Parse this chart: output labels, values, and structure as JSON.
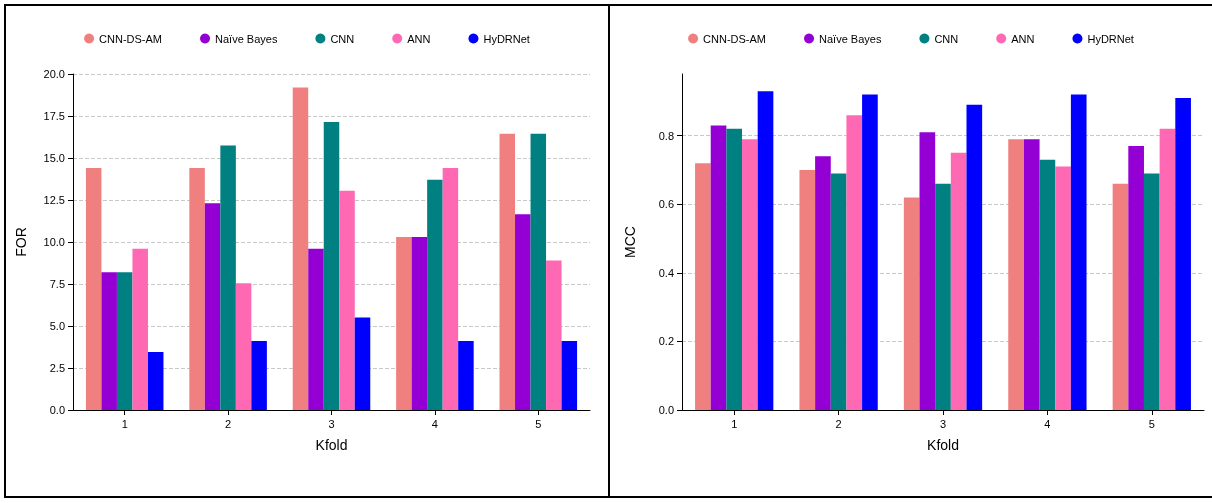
{
  "chart_data": [
    {
      "type": "bar",
      "xlabel": "Kfold",
      "ylabel": "FOR",
      "categories": [
        "1",
        "2",
        "3",
        "4",
        "5"
      ],
      "ylim": [
        0,
        20
      ],
      "yticks": [
        {
          "value": 0,
          "label": "0.0"
        },
        {
          "value": 2.5,
          "label": "2.5"
        },
        {
          "value": 5,
          "label": "5.0"
        },
        {
          "value": 7.5,
          "label": "7.5"
        },
        {
          "value": 10,
          "label": "10.0"
        },
        {
          "value": 12.5,
          "label": "12.5"
        },
        {
          "value": 15,
          "label": "15.0"
        },
        {
          "value": 17.5,
          "label": "17.5"
        },
        {
          "value": 20,
          "label": "20.0"
        }
      ],
      "grid": "y",
      "legend": "top",
      "series": [
        {
          "name": "CNN-DS-AM",
          "color": "#f08080",
          "values": [
            14.4,
            14.4,
            19.2,
            10.3,
            16.45
          ]
        },
        {
          "name": "Naïve Bayes",
          "color": "#9400d3",
          "values": [
            8.2,
            12.3,
            9.6,
            10.3,
            11.65
          ]
        },
        {
          "name": "CNN",
          "color": "#008080",
          "values": [
            8.2,
            15.75,
            17.15,
            13.7,
            16.45
          ]
        },
        {
          "name": "ANN",
          "color": "#ff69b4",
          "values": [
            9.6,
            7.55,
            13.05,
            14.4,
            8.9
          ]
        },
        {
          "name": "HyDRNet",
          "color": "#0000ff",
          "values": [
            3.45,
            4.1,
            5.5,
            4.1,
            4.1
          ]
        }
      ]
    },
    {
      "type": "bar",
      "xlabel": "Kfold",
      "ylabel": "MCC",
      "categories": [
        "1",
        "2",
        "3",
        "4",
        "5"
      ],
      "ylim": [
        0,
        0.98
      ],
      "yticks": [
        {
          "value": 0,
          "label": "0.0"
        },
        {
          "value": 0.2,
          "label": "0.2"
        },
        {
          "value": 0.4,
          "label": "0.4"
        },
        {
          "value": 0.6,
          "label": "0.6"
        },
        {
          "value": 0.8,
          "label": "0.8"
        }
      ],
      "grid": "y",
      "legend": "top",
      "series": [
        {
          "name": "CNN-DS-AM",
          "color": "#f08080",
          "values": [
            0.72,
            0.7,
            0.62,
            0.79,
            0.66
          ]
        },
        {
          "name": "Naïve Bayes",
          "color": "#9400d3",
          "values": [
            0.83,
            0.74,
            0.81,
            0.79,
            0.77
          ]
        },
        {
          "name": "CNN",
          "color": "#008080",
          "values": [
            0.82,
            0.69,
            0.66,
            0.73,
            0.69
          ]
        },
        {
          "name": "ANN",
          "color": "#ff69b4",
          "values": [
            0.79,
            0.86,
            0.75,
            0.71,
            0.82
          ]
        },
        {
          "name": "HyDRNet",
          "color": "#0000ff",
          "values": [
            0.93,
            0.92,
            0.89,
            0.92,
            0.91
          ]
        }
      ]
    }
  ]
}
